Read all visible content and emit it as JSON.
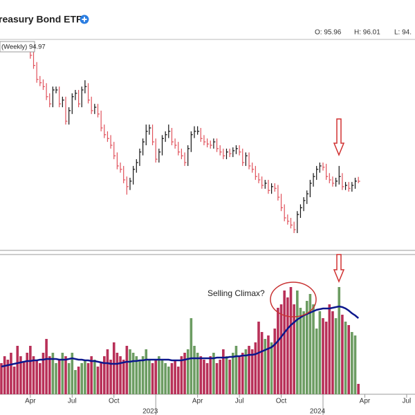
{
  "chart_data": {
    "type": "hlc",
    "title": "reasury Bond ETF",
    "quote": [
      "O: 95.96",
      "H: 96.01",
      "L: 94."
    ],
    "legend_label": "(Weekly) 94.97",
    "annotation": "Selling Climax?",
    "categories": [
      null,
      null,
      null,
      null,
      null,
      null,
      null,
      null,
      null,
      "Apr",
      null,
      null,
      null,
      null,
      null,
      null,
      null,
      null,
      null,
      null,
      null,
      null,
      "Jul",
      null,
      null,
      null,
      null,
      null,
      null,
      null,
      null,
      null,
      null,
      null,
      null,
      "Oct",
      null,
      null,
      null,
      null,
      null,
      null,
      null,
      null,
      null,
      null,
      null,
      null,
      "2023",
      null,
      null,
      null,
      null,
      null,
      null,
      null,
      null,
      null,
      null,
      null,
      null,
      "Apr",
      null,
      null,
      null,
      null,
      null,
      null,
      null,
      null,
      null,
      null,
      null,
      null,
      "Jul",
      null,
      null,
      null,
      null,
      null,
      null,
      null,
      null,
      null,
      null,
      null,
      null,
      "Oct",
      null,
      null,
      null,
      null,
      null,
      null,
      null,
      null,
      null,
      null,
      null,
      null,
      "2024",
      null,
      null,
      null,
      null,
      null,
      null,
      null,
      null,
      null,
      null,
      null,
      null,
      "Apr",
      null,
      null,
      null,
      null,
      null,
      null,
      null,
      null,
      null,
      null,
      null,
      null,
      "Jul"
    ],
    "ylim": [
      78.6,
      128.4
    ],
    "up_color": "#111111",
    "down_color": "#e0505a",
    "price": {
      "high": [
        null,
        null,
        null,
        null,
        null,
        null,
        null,
        null,
        null,
        127.0,
        125.6,
        123.2,
        119.9,
        119.1,
        118.2,
        115.8,
        117.4,
        117.4,
        117.4,
        115.0,
        115.0,
        112.5,
        115.8,
        116.6,
        116.6,
        117.4,
        118.9,
        118.2,
        115.0,
        113.3,
        113.3,
        111.7,
        108.4,
        106.8,
        105.9,
        104.3,
        101.8,
        99.4,
        98.6,
        96.1,
        95.8,
        98.6,
        100.2,
        102.7,
        105.1,
        108.4,
        108.4,
        108.4,
        105.1,
        102.7,
        105.9,
        106.8,
        108.4,
        107.6,
        105.1,
        104.3,
        102.7,
        101.8,
        103.5,
        106.8,
        108.0,
        108.0,
        107.6,
        105.9,
        105.1,
        104.6,
        105.1,
        105.1,
        103.5,
        102.7,
        102.7,
        102.7,
        103.0,
        103.5,
        103.5,
        102.7,
        101.8,
        101.8,
        99.4,
        98.6,
        96.9,
        96.1,
        95.3,
        95.3,
        94.5,
        94.5,
        94.1,
        92.0,
        89.5,
        87.1,
        86.3,
        85.4,
        87.9,
        89.5,
        91.2,
        92.8,
        95.3,
        96.9,
        98.6,
        99.4,
        99.4,
        99.1,
        96.9,
        96.1,
        95.8,
        98.6,
        96.9,
        94.8,
        94.8,
        94.8,
        95.8,
        96.01,
        null,
        null,
        null,
        null,
        null,
        null,
        null,
        null,
        null,
        null,
        null,
        null,
        null,
        null,
        null
      ],
      "low": [
        null,
        null,
        null,
        null,
        null,
        null,
        null,
        null,
        null,
        124.0,
        121.6,
        118.3,
        117.5,
        116.6,
        114.2,
        112.5,
        112.5,
        115.8,
        112.5,
        112.5,
        108.4,
        108.4,
        110.9,
        114.2,
        112.5,
        112.5,
        115.8,
        113.4,
        110.9,
        110.9,
        110.1,
        106.8,
        105.2,
        104.3,
        102.7,
        100.2,
        97.8,
        97.0,
        94.5,
        91.8,
        92.9,
        94.2,
        97.0,
        98.6,
        101.1,
        103.5,
        106.0,
        103.5,
        99.4,
        99.4,
        101.1,
        104.3,
        105.2,
        103.5,
        102.7,
        101.1,
        100.2,
        98.6,
        98.6,
        101.9,
        105.2,
        106.0,
        104.3,
        103.5,
        103.0,
        102.7,
        102.7,
        101.9,
        101.1,
        100.2,
        100.2,
        100.7,
        100.7,
        101.4,
        101.1,
        98.6,
        98.6,
        97.8,
        97.0,
        95.3,
        94.5,
        93.2,
        93.2,
        92.0,
        92.0,
        92.5,
        90.4,
        87.9,
        85.5,
        84.7,
        83.8,
        82.7,
        82.7,
        86.3,
        87.9,
        89.6,
        91.2,
        93.7,
        95.3,
        97.0,
        97.5,
        95.3,
        94.5,
        93.7,
        93.7,
        94.2,
        92.9,
        92.9,
        92.5,
        92.5,
        93.2,
        94.5,
        null,
        null,
        null,
        null,
        null,
        null,
        null,
        null,
        null,
        null,
        null,
        null,
        null,
        null,
        null
      ],
      "close": [
        null,
        null,
        null,
        null,
        null,
        null,
        null,
        null,
        null,
        124.8,
        122.4,
        119.1,
        118.3,
        117.4,
        115.0,
        113.3,
        116.6,
        116.6,
        113.3,
        114.2,
        109.2,
        111.7,
        115.0,
        115.8,
        113.3,
        116.6,
        117.4,
        114.2,
        111.7,
        112.5,
        110.9,
        107.6,
        106.0,
        105.1,
        103.5,
        101.0,
        98.6,
        97.8,
        95.3,
        93.7,
        95.0,
        97.8,
        99.4,
        101.9,
        104.3,
        106.8,
        107.6,
        104.3,
        100.2,
        101.9,
        105.1,
        106.0,
        106.8,
        104.3,
        103.5,
        101.9,
        101.0,
        99.4,
        102.7,
        106.0,
        106.8,
        106.8,
        105.1,
        104.3,
        103.8,
        103.5,
        104.3,
        102.7,
        101.9,
        101.0,
        101.9,
        101.5,
        102.2,
        102.7,
        101.9,
        99.4,
        101.0,
        98.6,
        97.8,
        96.1,
        95.3,
        94.0,
        94.5,
        92.8,
        93.7,
        93.3,
        91.2,
        88.7,
        86.3,
        85.5,
        84.6,
        83.5,
        87.1,
        88.7,
        90.4,
        92.0,
        94.5,
        96.1,
        97.8,
        98.6,
        98.3,
        96.1,
        95.3,
        94.5,
        95.0,
        96.1,
        93.7,
        94.0,
        93.3,
        94.0,
        95.0,
        94.97,
        null,
        null,
        null,
        null,
        null,
        null,
        null,
        null,
        null,
        null,
        null,
        null,
        null,
        null,
        null
      ]
    },
    "volume": {
      "ylim": [
        0,
        200
      ],
      "up_color": "#6c9c62",
      "down_color": "#b83058",
      "ma_color": "#0b178c",
      "values": [
        45,
        55,
        50,
        60,
        40,
        70,
        55,
        48,
        60,
        70,
        55,
        50,
        45,
        60,
        80,
        55,
        60,
        45,
        50,
        60,
        55,
        45,
        60,
        35,
        40,
        45,
        48,
        45,
        55,
        50,
        40,
        45,
        55,
        65,
        50,
        75,
        60,
        55,
        50,
        70,
        65,
        60,
        55,
        50,
        55,
        65,
        50,
        45,
        50,
        55,
        50,
        45,
        40,
        45,
        50,
        40,
        55,
        60,
        65,
        110,
        70,
        60,
        55,
        50,
        45,
        55,
        60,
        45,
        50,
        65,
        55,
        50,
        60,
        70,
        55,
        60,
        65,
        70,
        65,
        75,
        105,
        90,
        80,
        85,
        75,
        95,
        125,
        130,
        150,
        140,
        155,
        130,
        150,
        125,
        120,
        135,
        145,
        130,
        95,
        120,
        110,
        105,
        130,
        120,
        110,
        155,
        115,
        105,
        100,
        90,
        85,
        15,
        null,
        null,
        null,
        null,
        null,
        null,
        null,
        null,
        null,
        null,
        null,
        null,
        null,
        null,
        null
      ],
      "ma": [
        40,
        41,
        42,
        43,
        44,
        45,
        46,
        47,
        48,
        48,
        49,
        49,
        50,
        50,
        51,
        51,
        51,
        51,
        50,
        50,
        50,
        51,
        52,
        51,
        50,
        50,
        49,
        49,
        48,
        48,
        47,
        46,
        45,
        45,
        44,
        44,
        44,
        45,
        46,
        47,
        47,
        48,
        48,
        49,
        49,
        50,
        50,
        50,
        50,
        50,
        50,
        50,
        50,
        49,
        49,
        49,
        49,
        50,
        51,
        52,
        52,
        52,
        52,
        52,
        52,
        52,
        52,
        53,
        53,
        53,
        53,
        54,
        54,
        55,
        55,
        56,
        56,
        57,
        57,
        58,
        60,
        62,
        64,
        66,
        68,
        72,
        77,
        83,
        89,
        95,
        100,
        104,
        108,
        111,
        114,
        116,
        118,
        120,
        122,
        123,
        124,
        124,
        124,
        125,
        126,
        127,
        126,
        124,
        121,
        117,
        114,
        110,
        null,
        null,
        null,
        null,
        null,
        null,
        null,
        null,
        null,
        null,
        null,
        null,
        null,
        null,
        null
      ]
    }
  }
}
